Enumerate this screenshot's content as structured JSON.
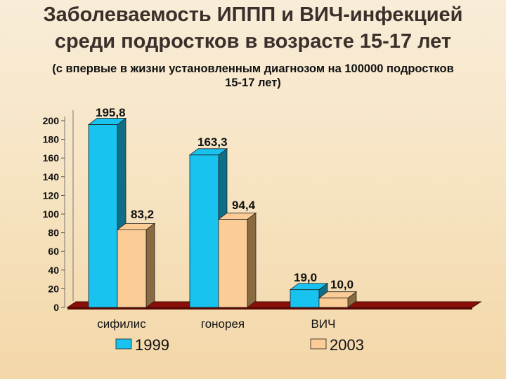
{
  "page": {
    "title_line1": "Заболеваемость ИППП и ВИЧ-инфекцией",
    "title_line2": "среди подростков в возрасте  15-17 лет",
    "subtitle_line1": "(с впервые в жизни установленным диагнозом на 100000  подростков",
    "subtitle_line2": "15-17 лет)"
  },
  "chart_data": {
    "type": "bar",
    "categories": [
      "сифилис",
      "гонорея",
      "ВИЧ"
    ],
    "series": [
      {
        "name": "1999",
        "values": [
          195.8,
          163.3,
          19.0
        ],
        "labels": [
          "195,8",
          "163,3",
          "19,0"
        ],
        "color": "#19c3f0",
        "side_color": "#0d6e86"
      },
      {
        "name": "2003",
        "values": [
          83.2,
          94.4,
          10.0
        ],
        "labels": [
          "83,2",
          "94,4",
          "10,0"
        ],
        "color": "#fccc96",
        "side_color": "#8a6a40"
      }
    ],
    "yticks": [
      "0",
      "20",
      "40",
      "60",
      "80",
      "100",
      "120",
      "140",
      "160",
      "180",
      "200"
    ],
    "ylim": [
      0,
      200
    ],
    "floor_color": "#8b0f08",
    "legend_position": "bottom",
    "grid": false
  }
}
